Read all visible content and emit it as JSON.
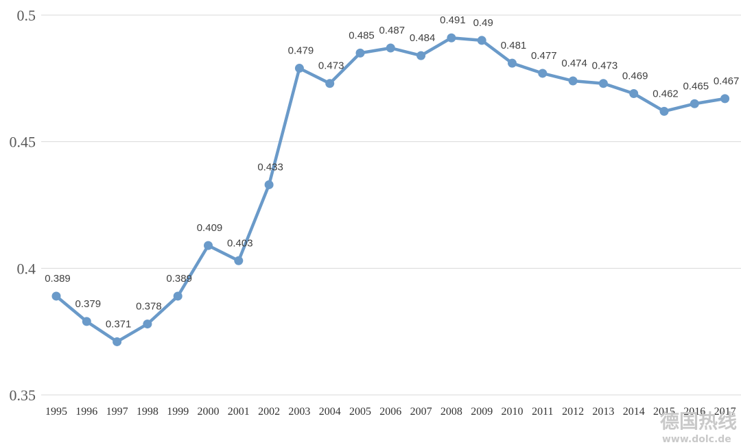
{
  "chart_data": {
    "type": "line",
    "title": "",
    "xlabel": "",
    "ylabel": "",
    "ylim": [
      0.35,
      0.5
    ],
    "yticks": [
      "0.35",
      "0.4",
      "0.45",
      "0.5"
    ],
    "grid": true,
    "categories": [
      "1995",
      "1996",
      "1997",
      "1998",
      "1999",
      "2000",
      "2001",
      "2002",
      "2003",
      "2004",
      "2005",
      "2006",
      "2007",
      "2008",
      "2009",
      "2010",
      "2011",
      "2012",
      "2013",
      "2014",
      "2015",
      "2016",
      "2017"
    ],
    "values": [
      0.389,
      0.379,
      0.371,
      0.378,
      0.389,
      0.409,
      0.403,
      0.433,
      0.479,
      0.473,
      0.485,
      0.487,
      0.484,
      0.491,
      0.49,
      0.481,
      0.477,
      0.474,
      0.473,
      0.469,
      0.462,
      0.465,
      0.467
    ],
    "value_labels": [
      "0.389",
      "0.379",
      "0.371",
      "0.378",
      "0.389",
      "0.409",
      "0.403",
      "0.433",
      "0.479",
      "0.473",
      "0.485",
      "0.487",
      "0.484",
      "0.491",
      "0.49",
      "0.481",
      "0.477",
      "0.474",
      "0.473",
      "0.469",
      "0.462",
      "0.465",
      "0.467"
    ],
    "line_color": "#6a9ac9",
    "grid_color": "#d9d9d9"
  },
  "watermark": {
    "cn": "德国热线",
    "url": "www.dolc.de"
  }
}
